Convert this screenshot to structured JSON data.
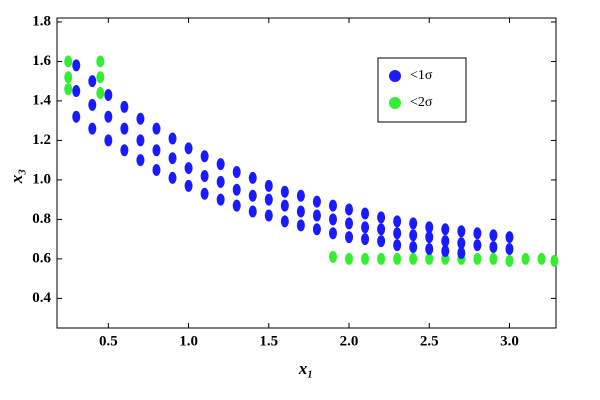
{
  "chart_data": {
    "type": "scatter",
    "xlabel": "x₁",
    "ylabel": "x₃",
    "xlim": [
      0.18,
      3.29
    ],
    "ylim": [
      0.25,
      1.82
    ],
    "xticks": [
      0.5,
      {
        "value": 1,
        "label": "1.0"
      },
      1.5,
      {
        "value": 2,
        "label": "2.0"
      },
      2.5,
      {
        "value": 3,
        "label": "3.0"
      }
    ],
    "yticks": [
      0.4,
      0.6,
      0.8,
      {
        "value": 1,
        "label": "1.0"
      },
      1.2,
      1.4,
      1.6,
      1.8
    ],
    "legend": "upper right",
    "series": [
      {
        "name": "<2σ",
        "color": "#33ee33",
        "x": [
          0.25,
          0.25,
          0.25,
          0.45,
          0.45,
          0.45,
          1.9,
          2.0,
          2.1,
          2.2,
          2.3,
          2.4,
          2.5,
          2.6,
          2.7,
          2.8,
          2.9,
          3.0,
          3.1,
          3.2,
          3.28
        ],
        "y": [
          1.6,
          1.52,
          1.46,
          1.6,
          1.52,
          1.44,
          0.61,
          0.6,
          0.6,
          0.6,
          0.6,
          0.6,
          0.6,
          0.6,
          0.6,
          0.6,
          0.6,
          0.59,
          0.6,
          0.6,
          0.59
        ]
      },
      {
        "name": "<1σ",
        "color": "#1a1aff",
        "x": [
          0.3,
          0.3,
          0.3,
          0.4,
          0.4,
          0.4,
          0.5,
          0.5,
          0.5,
          0.6,
          0.6,
          0.6,
          0.7,
          0.7,
          0.7,
          0.8,
          0.8,
          0.8,
          0.9,
          0.9,
          0.9,
          1.0,
          1.0,
          1.0,
          1.1,
          1.1,
          1.1,
          1.2,
          1.2,
          1.2,
          1.3,
          1.3,
          1.3,
          1.4,
          1.4,
          1.4,
          1.5,
          1.5,
          1.5,
          1.6,
          1.6,
          1.6,
          1.7,
          1.7,
          1.7,
          1.8,
          1.8,
          1.8,
          1.9,
          1.9,
          1.9,
          2.0,
          2.0,
          2.0,
          2.1,
          2.1,
          2.1,
          2.2,
          2.2,
          2.2,
          2.3,
          2.3,
          2.3,
          2.4,
          2.4,
          2.4,
          2.5,
          2.5,
          2.5,
          2.6,
          2.6,
          2.6,
          2.7,
          2.7,
          2.7,
          2.8,
          2.8,
          2.9,
          2.9,
          3.0,
          3.0
        ],
        "y": [
          1.58,
          1.45,
          1.32,
          1.5,
          1.38,
          1.26,
          1.43,
          1.32,
          1.2,
          1.37,
          1.26,
          1.15,
          1.31,
          1.2,
          1.1,
          1.26,
          1.15,
          1.05,
          1.21,
          1.11,
          1.01,
          1.16,
          1.06,
          0.97,
          1.12,
          1.02,
          0.93,
          1.08,
          0.99,
          0.9,
          1.04,
          0.95,
          0.87,
          1.01,
          0.92,
          0.84,
          0.97,
          0.9,
          0.82,
          0.94,
          0.87,
          0.79,
          0.92,
          0.84,
          0.77,
          0.89,
          0.82,
          0.75,
          0.87,
          0.8,
          0.73,
          0.85,
          0.78,
          0.71,
          0.83,
          0.76,
          0.7,
          0.81,
          0.75,
          0.69,
          0.79,
          0.73,
          0.67,
          0.78,
          0.72,
          0.66,
          0.76,
          0.71,
          0.65,
          0.75,
          0.69,
          0.64,
          0.74,
          0.68,
          0.63,
          0.73,
          0.67,
          0.72,
          0.66,
          0.71,
          0.65
        ]
      }
    ]
  }
}
